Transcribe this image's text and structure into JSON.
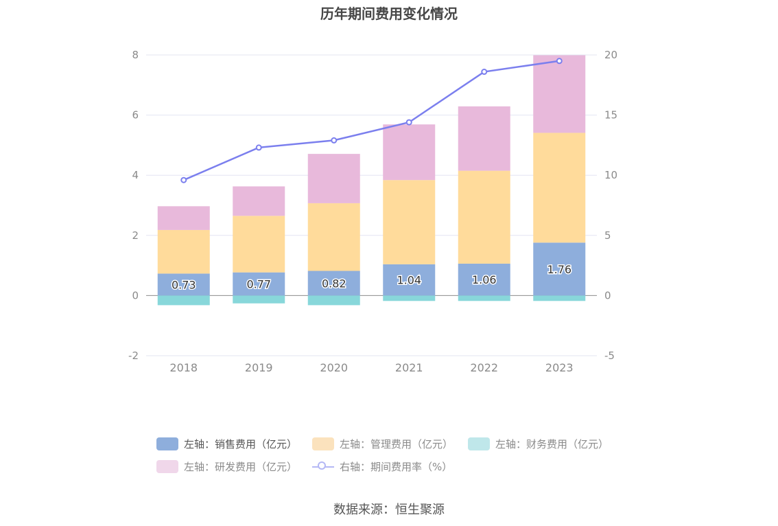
{
  "title": "历年期间费用变化情况",
  "source": "数据来源：恒生聚源",
  "legend": [
    {
      "label": "左轴：销售费用（亿元）",
      "color": "#8eaedc",
      "type": "bar",
      "faded": false
    },
    {
      "label": "左轴：管理费用（亿元）",
      "color": "#fbe2bd",
      "type": "bar",
      "faded": true
    },
    {
      "label": "左轴：财务费用（亿元）",
      "color": "#bfe7ea",
      "type": "bar",
      "faded": true
    },
    {
      "label": "左轴：研发费用（亿元）",
      "color": "#f0d7ea",
      "type": "bar",
      "faded": true
    },
    {
      "label": "右轴：期间费用率（%）",
      "color": "#b4b8f5",
      "type": "line",
      "faded": true
    }
  ],
  "chart_data": {
    "type": "bar",
    "title": "历年期间费用变化情况",
    "categories": [
      "2018",
      "2019",
      "2020",
      "2021",
      "2022",
      "2023"
    ],
    "y_left": {
      "ylim": [
        -2,
        8
      ],
      "ticks": [
        -2,
        0,
        2,
        4,
        6,
        8
      ]
    },
    "y_right": {
      "ylim": [
        -5,
        20
      ],
      "ticks": [
        -5,
        0,
        5,
        10,
        15,
        20
      ]
    },
    "series": [
      {
        "name": "左轴：销售费用（亿元）",
        "axis": "left",
        "stack": "total",
        "color": "#8eaedc",
        "values": [
          0.73,
          0.77,
          0.82,
          1.04,
          1.06,
          1.76
        ],
        "data_labels": [
          "0.73",
          "0.77",
          "0.82",
          "1.04",
          "1.06",
          "1.76"
        ]
      },
      {
        "name": "左轴：管理费用（亿元）",
        "axis": "left",
        "stack": "total",
        "color": "#ffdb9b",
        "values": [
          1.45,
          1.88,
          2.25,
          2.8,
          3.09,
          3.65
        ]
      },
      {
        "name": "左轴：财务费用（亿元）",
        "axis": "left",
        "stack": "total",
        "color": "#88d7da",
        "values": [
          -0.32,
          -0.26,
          -0.32,
          -0.18,
          -0.18,
          -0.18
        ]
      },
      {
        "name": "左轴：研发费用（亿元）",
        "axis": "left",
        "stack": "total",
        "color": "#e8b9db",
        "values": [
          0.79,
          0.98,
          1.64,
          1.85,
          2.14,
          2.58
        ]
      },
      {
        "name": "右轴：期间费用率（%）",
        "axis": "right",
        "type": "line",
        "color": "#7b7fee",
        "values": [
          9.6,
          12.3,
          12.9,
          14.4,
          18.6,
          19.5
        ]
      }
    ],
    "grid": true
  }
}
